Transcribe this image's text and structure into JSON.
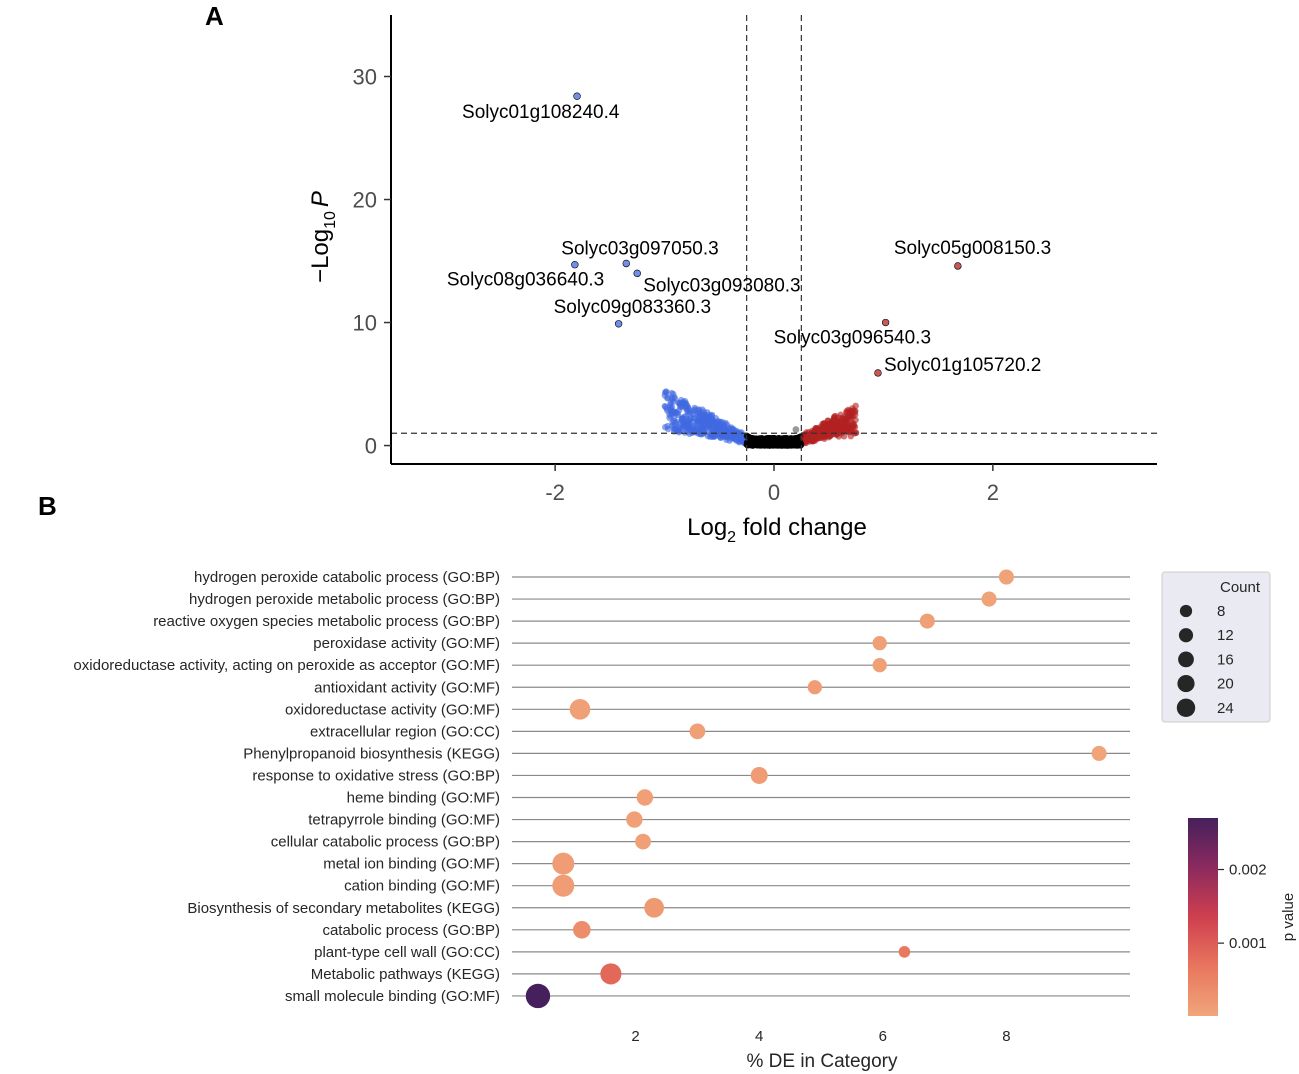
{
  "panel_labels": {
    "a": "A",
    "b": "B"
  },
  "chart_data": [
    {
      "type": "scatter",
      "subtype": "volcano",
      "panel": "A",
      "xlabel": "Log2 fold change",
      "xlabel_parts": {
        "base": "Log",
        "sub": "2",
        "rest": " fold change"
      },
      "ylabel": "-Log10 P",
      "ylabel_parts": {
        "prefix": "−Log",
        "sub": "10",
        "italic": "P"
      },
      "xlim": [
        -3.5,
        3.5
      ],
      "ylim": [
        -1.5,
        35
      ],
      "xticks": [
        -2,
        0,
        2
      ],
      "xtick_labels": [
        "-2",
        "0",
        "2"
      ],
      "yticks": [
        0,
        10,
        20,
        30
      ],
      "ytick_labels": [
        "0",
        "10",
        "20",
        "30"
      ],
      "fc_cutoff": 0.25,
      "p_cutoff": 1.0,
      "colors": {
        "down": "#4169e1",
        "up": "#b22222",
        "ns": "#000000",
        "grey": "#808080"
      },
      "labeled_genes": [
        {
          "name": "Solyc01g108240.4",
          "x": -1.8,
          "y": 28.4,
          "group": "down"
        },
        {
          "name": "Solyc03g097050.3",
          "x": -1.35,
          "y": 14.8,
          "group": "down"
        },
        {
          "name": "Solyc08g036640.3",
          "x": -1.82,
          "y": 14.7,
          "group": "down"
        },
        {
          "name": "Solyc03g093080.3",
          "x": -1.25,
          "y": 14.0,
          "group": "down"
        },
        {
          "name": "Solyc09g083360.3",
          "x": -1.42,
          "y": 9.9,
          "group": "down"
        },
        {
          "name": "Solyc05g008150.3",
          "x": 1.68,
          "y": 14.6,
          "group": "up"
        },
        {
          "name": "Solyc03g096540.3",
          "x": 1.02,
          "y": 10.0,
          "group": "up"
        },
        {
          "name": "Solyc01g105720.2",
          "x": 0.95,
          "y": 5.9,
          "group": "up"
        }
      ]
    },
    {
      "type": "scatter",
      "subtype": "dot-plot",
      "panel": "B",
      "xlabel": "% DE in Category",
      "xticks": [
        2,
        4,
        6,
        8
      ],
      "xtick_labels": [
        "2",
        "4",
        "6",
        "8"
      ],
      "xlim": [
        0,
        10
      ],
      "categories": [
        "hydrogen peroxide catabolic process (GO:BP)",
        "hydrogen peroxide metabolic process (GO:BP)",
        "reactive oxygen species metabolic process (GO:BP)",
        "peroxidase activity (GO:MF)",
        "oxidoreductase activity, acting on peroxide as acceptor (GO:MF)",
        "antioxidant activity (GO:MF)",
        "oxidoreductase activity (GO:MF)",
        "extracellular region (GO:CC)",
        "Phenylpropanoid biosynthesis (KEGG)",
        "response to oxidative stress (GO:BP)",
        "heme binding (GO:MF)",
        "tetrapyrrole binding (GO:MF)",
        "cellular catabolic process (GO:BP)",
        "metal ion binding (GO:MF)",
        "cation binding (GO:MF)",
        "Biosynthesis of secondary metabolites (KEGG)",
        "catabolic process (GO:BP)",
        "plant-type cell wall (GO:CC)",
        "Metabolic pathways (KEGG)",
        "small molecule binding (GO:MF)"
      ],
      "values": [
        8.0,
        7.72,
        6.72,
        5.95,
        5.95,
        4.9,
        1.1,
        3.0,
        9.5,
        4.0,
        2.15,
        1.98,
        2.12,
        0.83,
        0.83,
        2.3,
        1.13,
        6.35,
        1.6,
        0.42
      ],
      "counts": [
        7,
        7,
        7,
        6,
        6,
        6,
        17,
        8,
        7,
        10,
        9,
        9,
        8,
        20,
        20,
        15,
        11,
        3,
        18,
        26
      ],
      "p_values": [
        5e-05,
        5e-05,
        8e-05,
        8e-05,
        8e-05,
        0.00012,
        8e-05,
        8e-05,
        3e-05,
        0.00015,
        0.0001,
        0.0001,
        0.0001,
        0.00012,
        0.00012,
        0.00018,
        0.00035,
        0.00065,
        0.00085,
        0.0027
      ],
      "legend_size": {
        "title": "Count",
        "values": [
          8,
          12,
          16,
          20,
          24
        ],
        "labels": [
          "8",
          "12",
          "16",
          "20",
          "24"
        ]
      },
      "legend_color": {
        "title": "p value",
        "range": [
          1e-05,
          0.0027
        ],
        "ticks": [
          0.002,
          0.001
        ],
        "tick_labels": [
          "0.002",
          "0.001"
        ],
        "low_color": "#f1a57a",
        "high_color": "#45205c"
      }
    }
  ]
}
